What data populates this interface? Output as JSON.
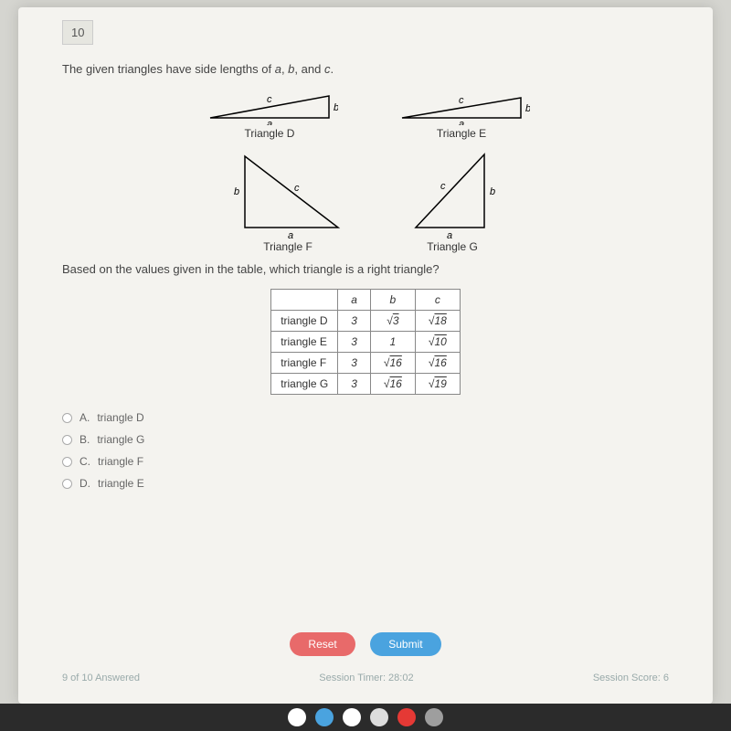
{
  "question_number": "10",
  "question_text": "The given triangles have side lengths of a, b, and c.",
  "triangles": {
    "D": "Triangle D",
    "E": "Triangle E",
    "F": "Triangle F",
    "G": "Triangle G"
  },
  "prompt": "Based on the values given in the table, which triangle is a right triangle?",
  "table": {
    "headers": [
      "",
      "a",
      "b",
      "c"
    ],
    "rows": [
      {
        "label": "triangle D",
        "a": "3",
        "b": "√3",
        "c": "√18"
      },
      {
        "label": "triangle E",
        "a": "3",
        "b": "1",
        "c": "√10"
      },
      {
        "label": "triangle F",
        "a": "3",
        "b": "√16",
        "c": "√16"
      },
      {
        "label": "triangle G",
        "a": "3",
        "b": "√16",
        "c": "√19"
      }
    ]
  },
  "options": [
    {
      "letter": "A.",
      "text": "triangle D"
    },
    {
      "letter": "B.",
      "text": "triangle G"
    },
    {
      "letter": "C.",
      "text": "triangle F"
    },
    {
      "letter": "D.",
      "text": "triangle E"
    }
  ],
  "buttons": {
    "reset": "Reset",
    "submit": "Submit"
  },
  "footer": {
    "answered": "9 of 10 Answered",
    "timer": "Session Timer: 28:02",
    "score": "Session Score: 6"
  },
  "colors": {
    "reset": "#e86a6a",
    "submit": "#4aa3df",
    "page_bg": "#f4f3ef"
  },
  "taskbar_icons": [
    {
      "name": "chrome-icon",
      "bg": "#ffffff"
    },
    {
      "name": "files-icon",
      "bg": "#4aa3df"
    },
    {
      "name": "mail-icon",
      "bg": "#ffffff"
    },
    {
      "name": "app-icon",
      "bg": "#dddddd"
    },
    {
      "name": "youtube-icon",
      "bg": "#e53935"
    },
    {
      "name": "app2-icon",
      "bg": "#9e9e9e"
    }
  ]
}
